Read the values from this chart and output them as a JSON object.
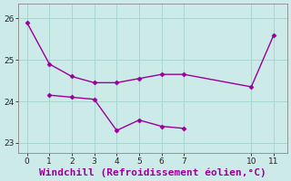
{
  "line1_x": [
    0,
    1,
    2,
    3,
    4,
    5,
    6,
    7,
    10,
    11
  ],
  "line1_y": [
    25.9,
    24.9,
    24.6,
    24.45,
    24.45,
    24.55,
    24.65,
    24.65,
    24.35,
    25.6
  ],
  "line2_x": [
    1,
    2,
    3,
    4,
    5,
    6,
    7
  ],
  "line2_y": [
    24.15,
    24.1,
    24.05,
    23.3,
    23.55,
    23.4,
    23.35
  ],
  "line_color": "#990099",
  "marker": "D",
  "markersize": 2.5,
  "linewidth": 1.0,
  "bg_color": "#cceae8",
  "grid_color": "#aad4d0",
  "xlabel": "Windchill (Refroidissement éolien,°C)",
  "xlabel_color": "#990099",
  "xlabel_fontsize": 8,
  "xticks": [
    0,
    1,
    2,
    3,
    4,
    5,
    6,
    7,
    10,
    11
  ],
  "yticks": [
    23,
    24,
    25,
    26
  ],
  "xlim": [
    -0.4,
    11.6
  ],
  "ylim": [
    22.75,
    26.35
  ]
}
